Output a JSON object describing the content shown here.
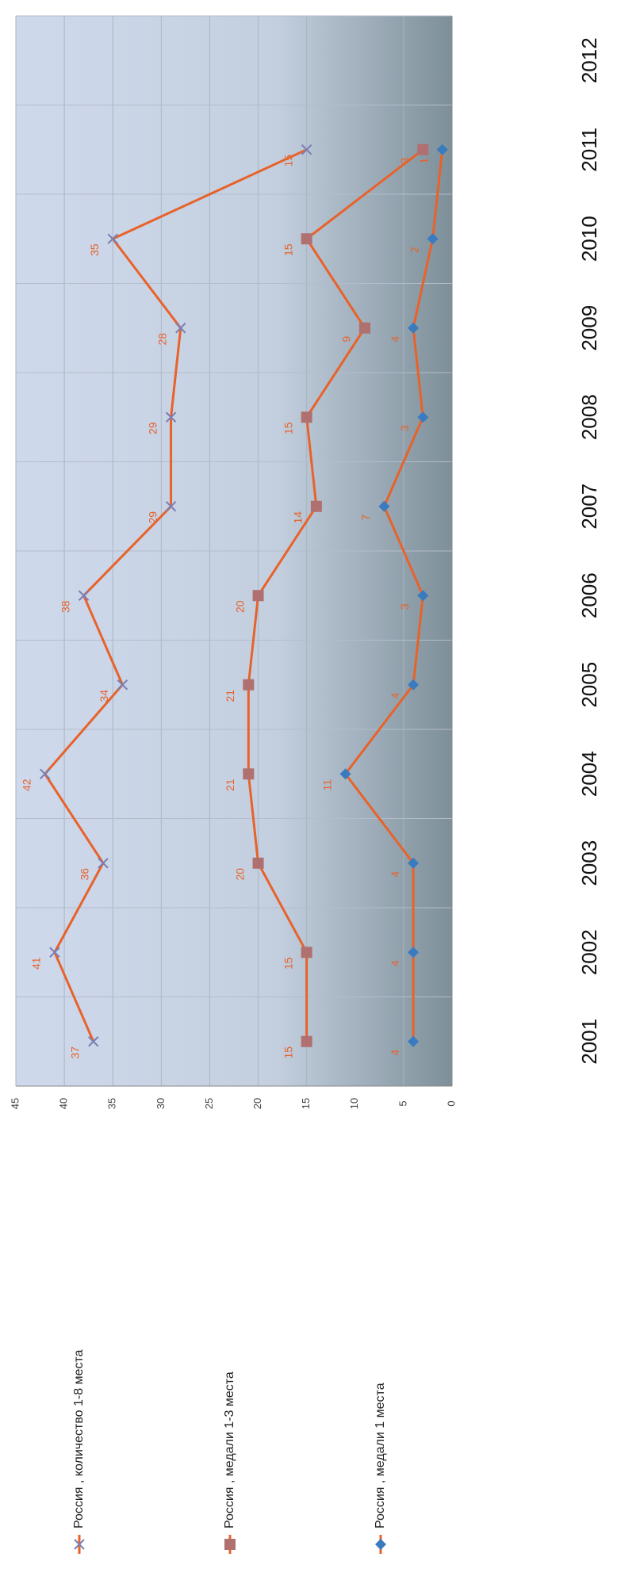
{
  "chart_data": {
    "type": "line",
    "categories": [
      "2001",
      "2002",
      "2003",
      "2004",
      "2005",
      "2006",
      "2007",
      "2008",
      "2009",
      "2010",
      "2011",
      "2012"
    ],
    "series": [
      {
        "name": "Россия , количество 1-8 места",
        "color": "#e8622a",
        "marker": "x",
        "marker_color": "#7a7fb5",
        "values": [
          37,
          41,
          36,
          42,
          34,
          38,
          29,
          29,
          28,
          35,
          15,
          null
        ]
      },
      {
        "name": "Россия , медали 1-3 места",
        "color": "#e8622a",
        "marker": "square",
        "marker_color": "#b07070",
        "values": [
          15,
          15,
          20,
          21,
          21,
          20,
          14,
          15,
          9,
          15,
          3,
          null
        ]
      },
      {
        "name": "Россия , медали 1 места",
        "color": "#e8622a",
        "marker": "diamond",
        "marker_color": "#3a7abf",
        "values": [
          4,
          4,
          4,
          11,
          4,
          3,
          7,
          3,
          4,
          2,
          1,
          null
        ]
      }
    ],
    "ylim": [
      0,
      45
    ],
    "yticks": [
      0,
      5,
      10,
      15,
      20,
      25,
      30,
      35,
      40,
      45
    ],
    "grid": true
  }
}
